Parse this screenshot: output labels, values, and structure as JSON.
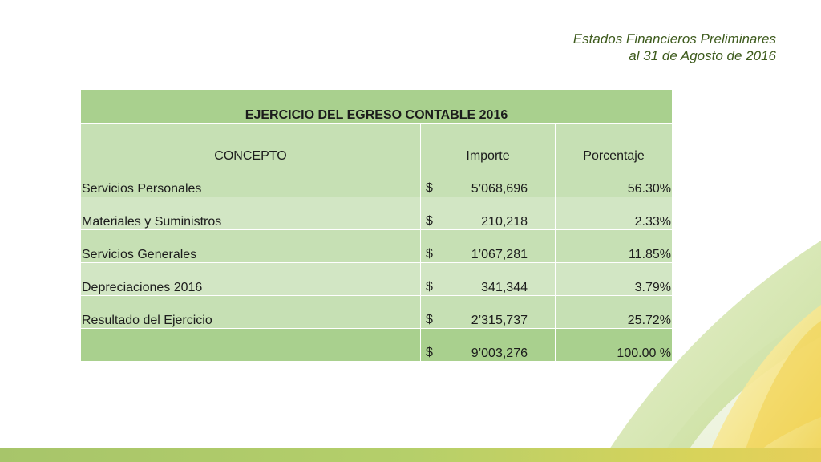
{
  "header": {
    "line1": "Estados Financieros Preliminares",
    "line2": "al 31 de Agosto de 2016"
  },
  "table": {
    "title": "EJERCICIO DEL EGRESO CONTABLE 2016",
    "columns": [
      "CONCEPTO",
      "Importe",
      "Porcentaje"
    ],
    "rows": [
      {
        "concepto": "Servicios Personales",
        "currency": "$",
        "importe": "5’068,696",
        "porcentaje": "56.30%"
      },
      {
        "concepto": "Materiales y Suministros",
        "currency": "$",
        "importe": "210,218",
        "porcentaje": "2.33%"
      },
      {
        "concepto": "Servicios Generales",
        "currency": "$",
        "importe": "1’067,281",
        "porcentaje": "11.85%"
      },
      {
        "concepto": "Depreciaciones 2016",
        "currency": "$",
        "importe": "341,344",
        "porcentaje": "3.79%"
      },
      {
        "concepto": "Resultado del Ejercicio",
        "currency": "$",
        "importe": "2’315,737",
        "porcentaje": "25.72%"
      }
    ],
    "total": {
      "concepto": "",
      "currency": "$",
      "importe": "9’003,276",
      "porcentaje": "100.00 %"
    }
  },
  "colors": {
    "title_bg": "#a9d08e",
    "cell_bg": "#c6e0b4",
    "header_text": "#3d5a1c"
  }
}
